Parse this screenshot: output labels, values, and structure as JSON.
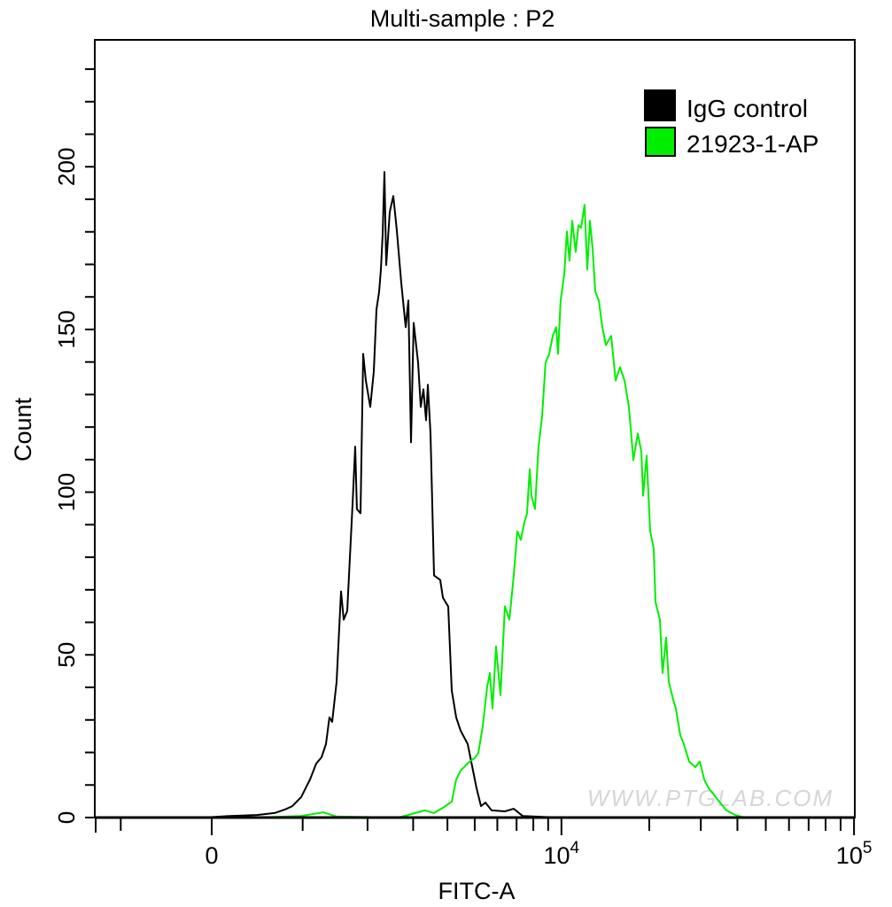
{
  "chart_data": {
    "type": "line",
    "title": "Multi-sample : P2",
    "xlabel": "FITC-A",
    "ylabel": "Count",
    "x_scale": "biexponential",
    "xlim": [
      -1340,
      100000
    ],
    "ylim": [
      0,
      239
    ],
    "x_tick_labels": [
      {
        "value": 0,
        "label": "0"
      },
      {
        "value": 10000,
        "base": "10",
        "exp": "4"
      },
      {
        "value": 100000,
        "base": "10",
        "exp": "5"
      }
    ],
    "x_minor_ticks": [
      -1000,
      1000,
      2000,
      3000,
      4000,
      5000,
      6000,
      7000,
      8000,
      9000,
      20000,
      30000,
      40000,
      50000,
      60000,
      70000,
      80000,
      90000
    ],
    "y_ticks": [
      0,
      50,
      100,
      150,
      200
    ],
    "y_minor_step": 10,
    "grid": false,
    "legend_position": "top-right",
    "watermark": "WWW.PTGLAB.COM",
    "series": [
      {
        "name": "IgG control",
        "color": "#000000",
        "points": [
          [
            -81,
            0
          ],
          [
            189,
            0.5
          ],
          [
            467,
            0.8
          ],
          [
            662,
            1.4
          ],
          [
            785,
            2.5
          ],
          [
            871,
            3.5
          ],
          [
            981,
            6.3
          ],
          [
            1038,
            9
          ],
          [
            1096,
            11.7
          ],
          [
            1180,
            16.6
          ],
          [
            1254,
            18.5
          ],
          [
            1317,
            22.6
          ],
          [
            1368,
            30.8
          ],
          [
            1408,
            29.4
          ],
          [
            1476,
            41.7
          ],
          [
            1544,
            69.5
          ],
          [
            1587,
            60.8
          ],
          [
            1644,
            63.5
          ],
          [
            1733,
            96.2
          ],
          [
            1778,
            114
          ],
          [
            1808,
            94.8
          ],
          [
            1871,
            93.5
          ],
          [
            1919,
            142.5
          ],
          [
            1968,
            134.3
          ],
          [
            2051,
            126.2
          ],
          [
            2119,
            137.1
          ],
          [
            2171,
            156.1
          ],
          [
            2224,
            161.6
          ],
          [
            2261,
            168.4
          ],
          [
            2297,
            179.3
          ],
          [
            2334,
            198.4
          ],
          [
            2371,
            169.8
          ],
          [
            2447,
            186.1
          ],
          [
            2525,
            191
          ],
          [
            2604,
            180.7
          ],
          [
            2708,
            164.3
          ],
          [
            2814,
            150.7
          ],
          [
            2879,
            158.9
          ],
          [
            2946,
            115.3
          ],
          [
            3013,
            152
          ],
          [
            3130,
            139.8
          ],
          [
            3201,
            126.2
          ],
          [
            3273,
            131.6
          ],
          [
            3348,
            122.1
          ],
          [
            3398,
            133
          ],
          [
            3475,
            118
          ],
          [
            3579,
            74.4
          ],
          [
            3769,
            73
          ],
          [
            3853,
            67.6
          ],
          [
            3938,
            66.2
          ],
          [
            4026,
            64.9
          ],
          [
            4145,
            39
          ],
          [
            4298,
            30.8
          ],
          [
            4457,
            26.7
          ],
          [
            4722,
            22.6
          ],
          [
            4895,
            15.8
          ],
          [
            5074,
            9
          ],
          [
            5259,
            3.5
          ],
          [
            5450,
            4.6
          ],
          [
            5730,
            2.2
          ],
          [
            6376,
            1.9
          ],
          [
            6845,
            2.7
          ],
          [
            7346,
            0.5
          ],
          [
            9734,
            0
          ]
        ]
      },
      {
        "name": "21923-1-AP",
        "color": "#00ee00",
        "points": [
          [
            467,
            0
          ],
          [
            981,
            0.5
          ],
          [
            1279,
            1.6
          ],
          [
            1476,
            0.3
          ],
          [
            2646,
            0
          ],
          [
            3323,
            2.2
          ],
          [
            3579,
            1.4
          ],
          [
            3853,
            3
          ],
          [
            4145,
            4.9
          ],
          [
            4298,
            11.7
          ],
          [
            4457,
            14.4
          ],
          [
            4790,
            17.2
          ],
          [
            5002,
            18.3
          ],
          [
            5147,
            19.9
          ],
          [
            5334,
            28.1
          ],
          [
            5529,
            40.3
          ],
          [
            5649,
            44.4
          ],
          [
            5771,
            33.5
          ],
          [
            5937,
            52.6
          ],
          [
            6153,
            37.6
          ],
          [
            6376,
            64.9
          ],
          [
            6606,
            60.8
          ],
          [
            6845,
            74.4
          ],
          [
            7043,
            88
          ],
          [
            7245,
            85.3
          ],
          [
            7453,
            90.7
          ],
          [
            7612,
            93.5
          ],
          [
            7773,
            107.1
          ],
          [
            7882,
            98.9
          ],
          [
            8107,
            94.8
          ],
          [
            8337,
            113.9
          ],
          [
            8576,
            123.4
          ],
          [
            8820,
            139.8
          ],
          [
            9072,
            142.5
          ],
          [
            9331,
            148
          ],
          [
            9596,
            150.7
          ],
          [
            9734,
            142.5
          ],
          [
            9939,
            158.9
          ],
          [
            10222,
            167
          ],
          [
            10440,
            180.1
          ],
          [
            10661,
            171.1
          ],
          [
            10888,
            183.4
          ],
          [
            11197,
            173.8
          ],
          [
            11435,
            182
          ],
          [
            11678,
            181.2
          ],
          [
            12009,
            188.3
          ],
          [
            12265,
            168.4
          ],
          [
            12525,
            183.4
          ],
          [
            12789,
            175.2
          ],
          [
            13066,
            161.6
          ],
          [
            13438,
            158.9
          ],
          [
            13818,
            150.7
          ],
          [
            14210,
            145.2
          ],
          [
            14816,
            148
          ],
          [
            15342,
            134.3
          ],
          [
            15888,
            138.4
          ],
          [
            16453,
            134.3
          ],
          [
            17036,
            126.2
          ],
          [
            17641,
            109.8
          ],
          [
            18267,
            118
          ],
          [
            18784,
            112.5
          ],
          [
            19047,
            98.9
          ],
          [
            19585,
            111.2
          ],
          [
            20139,
            88
          ],
          [
            20708,
            82.6
          ],
          [
            21000,
            66.2
          ],
          [
            21746,
            60.8
          ],
          [
            22207,
            44.4
          ],
          [
            22834,
            55.3
          ],
          [
            23316,
            41.7
          ],
          [
            24144,
            36.2
          ],
          [
            24654,
            33.5
          ],
          [
            25528,
            25.3
          ],
          [
            26248,
            22.6
          ],
          [
            27370,
            17.2
          ],
          [
            28736,
            15.5
          ],
          [
            29755,
            17.2
          ],
          [
            30809,
            11.7
          ],
          [
            31902,
            9
          ],
          [
            34685,
            4.9
          ],
          [
            36672,
            2.2
          ],
          [
            39315,
            0.8
          ],
          [
            42154,
            0
          ]
        ]
      }
    ]
  }
}
